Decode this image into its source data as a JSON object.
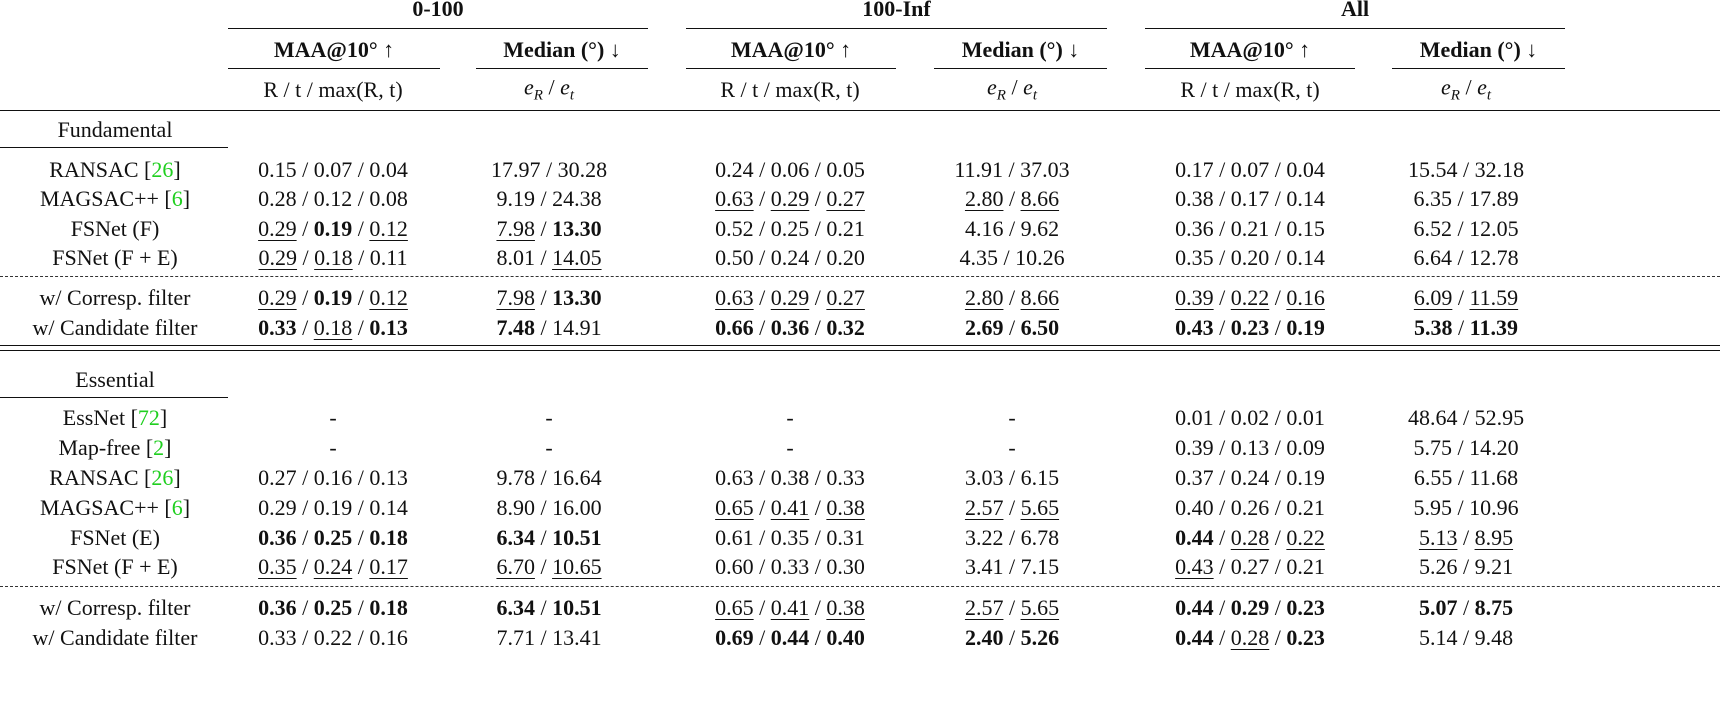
{
  "header": {
    "groups": [
      "0-100",
      "100-Inf",
      "All"
    ],
    "maa_label": "MAA@10° ↑",
    "median_label": "Median (°) ↓",
    "maa_sub": "R / t / max(R, t)",
    "median_sub": {
      "e": "e",
      "r": "R",
      "sep": " / ",
      "t": "t"
    }
  },
  "sections": [
    {
      "title": "Fundamental",
      "rows": [
        {
          "method": "RANSAC [",
          "ref": "26",
          "close": "]",
          "cells": [
            [
              [
                "0.15",
                ""
              ],
              [
                "0.07",
                ""
              ],
              [
                "0.04",
                ""
              ]
            ],
            [
              [
                "17.97",
                ""
              ],
              [
                "30.28",
                ""
              ]
            ],
            [
              [
                "0.24",
                ""
              ],
              [
                "0.06",
                ""
              ],
              [
                "0.05",
                ""
              ]
            ],
            [
              [
                "11.91",
                ""
              ],
              [
                "37.03",
                ""
              ]
            ],
            [
              [
                "0.17",
                ""
              ],
              [
                "0.07",
                ""
              ],
              [
                "0.04",
                ""
              ]
            ],
            [
              [
                "15.54",
                ""
              ],
              [
                "32.18",
                ""
              ]
            ]
          ]
        },
        {
          "method": "MAGSAC++ [",
          "ref": "6",
          "close": "]",
          "cells": [
            [
              [
                "0.28",
                ""
              ],
              [
                "0.12",
                ""
              ],
              [
                "0.08",
                ""
              ]
            ],
            [
              [
                "9.19",
                ""
              ],
              [
                "24.38",
                ""
              ]
            ],
            [
              [
                "0.63",
                "u"
              ],
              [
                "0.29",
                "u"
              ],
              [
                "0.27",
                "u"
              ]
            ],
            [
              [
                "2.80",
                "u"
              ],
              [
                "8.66",
                "u"
              ]
            ],
            [
              [
                "0.38",
                ""
              ],
              [
                "0.17",
                ""
              ],
              [
                "0.14",
                ""
              ]
            ],
            [
              [
                "6.35",
                ""
              ],
              [
                "17.89",
                ""
              ]
            ]
          ]
        },
        {
          "method": "FSNet (F)",
          "cells": [
            [
              [
                "0.29",
                "u"
              ],
              [
                "0.19",
                "b"
              ],
              [
                "0.12",
                "u"
              ]
            ],
            [
              [
                "7.98",
                "u"
              ],
              [
                "13.30",
                "b"
              ]
            ],
            [
              [
                "0.52",
                ""
              ],
              [
                "0.25",
                ""
              ],
              [
                "0.21",
                ""
              ]
            ],
            [
              [
                "4.16",
                ""
              ],
              [
                "9.62",
                ""
              ]
            ],
            [
              [
                "0.36",
                ""
              ],
              [
                "0.21",
                ""
              ],
              [
                "0.15",
                ""
              ]
            ],
            [
              [
                "6.52",
                ""
              ],
              [
                "12.05",
                ""
              ]
            ]
          ]
        },
        {
          "method": "FSNet (F + E)",
          "cells": [
            [
              [
                "0.29",
                "u"
              ],
              [
                "0.18",
                "u"
              ],
              [
                "0.11",
                ""
              ]
            ],
            [
              [
                "8.01",
                ""
              ],
              [
                "14.05",
                "u"
              ]
            ],
            [
              [
                "0.50",
                ""
              ],
              [
                "0.24",
                ""
              ],
              [
                "0.20",
                ""
              ]
            ],
            [
              [
                "4.35",
                ""
              ],
              [
                "10.26",
                ""
              ]
            ],
            [
              [
                "0.35",
                ""
              ],
              [
                "0.20",
                ""
              ],
              [
                "0.14",
                ""
              ]
            ],
            [
              [
                "6.64",
                ""
              ],
              [
                "12.78",
                ""
              ]
            ]
          ]
        },
        {
          "method": "w/ Corresp. filter",
          "cells": [
            [
              [
                "0.29",
                "u"
              ],
              [
                "0.19",
                "b"
              ],
              [
                "0.12",
                "u"
              ]
            ],
            [
              [
                "7.98",
                "u"
              ],
              [
                "13.30",
                "b"
              ]
            ],
            [
              [
                "0.63",
                "u"
              ],
              [
                "0.29",
                "u"
              ],
              [
                "0.27",
                "u"
              ]
            ],
            [
              [
                "2.80",
                "u"
              ],
              [
                "8.66",
                "u"
              ]
            ],
            [
              [
                "0.39",
                "u"
              ],
              [
                "0.22",
                "u"
              ],
              [
                "0.16",
                "u"
              ]
            ],
            [
              [
                "6.09",
                "u"
              ],
              [
                "11.59",
                "u"
              ]
            ]
          ]
        },
        {
          "method": "w/ Candidate filter",
          "cells": [
            [
              [
                "0.33",
                "b"
              ],
              [
                "0.18",
                "u"
              ],
              [
                "0.13",
                "b"
              ]
            ],
            [
              [
                "7.48",
                "b"
              ],
              [
                "14.91",
                ""
              ]
            ],
            [
              [
                "0.66",
                "b"
              ],
              [
                "0.36",
                "b"
              ],
              [
                "0.32",
                "b"
              ]
            ],
            [
              [
                "2.69",
                "b"
              ],
              [
                "6.50",
                "b"
              ]
            ],
            [
              [
                "0.43",
                "b"
              ],
              [
                "0.23",
                "b"
              ],
              [
                "0.19",
                "b"
              ]
            ],
            [
              [
                "5.38",
                "b"
              ],
              [
                "11.39",
                "b"
              ]
            ]
          ]
        }
      ]
    },
    {
      "title": "Essential",
      "rows": [
        {
          "method": "EssNet [",
          "ref": "72",
          "close": "]",
          "cells": [
            [
              [
                "-",
                ""
              ]
            ],
            [
              [
                "-",
                ""
              ]
            ],
            [
              [
                "-",
                ""
              ]
            ],
            [
              [
                "-",
                ""
              ]
            ],
            [
              [
                "0.01",
                ""
              ],
              [
                "0.02",
                ""
              ],
              [
                "0.01",
                ""
              ]
            ],
            [
              [
                "48.64",
                ""
              ],
              [
                "52.95",
                ""
              ]
            ]
          ]
        },
        {
          "method": "Map-free [",
          "ref": "2",
          "close": "]",
          "cells": [
            [
              [
                "-",
                ""
              ]
            ],
            [
              [
                "-",
                ""
              ]
            ],
            [
              [
                "-",
                ""
              ]
            ],
            [
              [
                "-",
                ""
              ]
            ],
            [
              [
                "0.39",
                ""
              ],
              [
                "0.13",
                ""
              ],
              [
                "0.09",
                ""
              ]
            ],
            [
              [
                "5.75",
                ""
              ],
              [
                "14.20",
                ""
              ]
            ]
          ]
        },
        {
          "method": "RANSAC [",
          "ref": "26",
          "close": "]",
          "cells": [
            [
              [
                "0.27",
                ""
              ],
              [
                "0.16",
                ""
              ],
              [
                "0.13",
                ""
              ]
            ],
            [
              [
                "9.78",
                ""
              ],
              [
                "16.64",
                ""
              ]
            ],
            [
              [
                "0.63",
                ""
              ],
              [
                "0.38",
                ""
              ],
              [
                "0.33",
                ""
              ]
            ],
            [
              [
                "3.03",
                ""
              ],
              [
                "6.15",
                ""
              ]
            ],
            [
              [
                "0.37",
                ""
              ],
              [
                "0.24",
                ""
              ],
              [
                "0.19",
                ""
              ]
            ],
            [
              [
                "6.55",
                ""
              ],
              [
                "11.68",
                ""
              ]
            ]
          ]
        },
        {
          "method": "MAGSAC++ [",
          "ref": "6",
          "close": "]",
          "cells": [
            [
              [
                "0.29",
                ""
              ],
              [
                "0.19",
                ""
              ],
              [
                "0.14",
                ""
              ]
            ],
            [
              [
                "8.90",
                ""
              ],
              [
                "16.00",
                ""
              ]
            ],
            [
              [
                "0.65",
                "u"
              ],
              [
                "0.41",
                "u"
              ],
              [
                "0.38",
                "u"
              ]
            ],
            [
              [
                "2.57",
                "u"
              ],
              [
                "5.65",
                "u"
              ]
            ],
            [
              [
                "0.40",
                ""
              ],
              [
                "0.26",
                ""
              ],
              [
                "0.21",
                ""
              ]
            ],
            [
              [
                "5.95",
                ""
              ],
              [
                "10.96",
                ""
              ]
            ]
          ]
        },
        {
          "method": "FSNet (E)",
          "cells": [
            [
              [
                "0.36",
                "b"
              ],
              [
                "0.25",
                "b"
              ],
              [
                "0.18",
                "b"
              ]
            ],
            [
              [
                "6.34",
                "b"
              ],
              [
                "10.51",
                "b"
              ]
            ],
            [
              [
                "0.61",
                ""
              ],
              [
                "0.35",
                ""
              ],
              [
                "0.31",
                ""
              ]
            ],
            [
              [
                "3.22",
                ""
              ],
              [
                "6.78",
                ""
              ]
            ],
            [
              [
                "0.44",
                "b"
              ],
              [
                "0.28",
                "u"
              ],
              [
                "0.22",
                "u"
              ]
            ],
            [
              [
                "5.13",
                "u"
              ],
              [
                "8.95",
                "u"
              ]
            ]
          ]
        },
        {
          "method": "FSNet (F + E)",
          "cells": [
            [
              [
                "0.35",
                "u"
              ],
              [
                "0.24",
                "u"
              ],
              [
                "0.17",
                "u"
              ]
            ],
            [
              [
                "6.70",
                "u"
              ],
              [
                "10.65",
                "u"
              ]
            ],
            [
              [
                "0.60",
                ""
              ],
              [
                "0.33",
                ""
              ],
              [
                "0.30",
                ""
              ]
            ],
            [
              [
                "3.41",
                ""
              ],
              [
                "7.15",
                ""
              ]
            ],
            [
              [
                "0.43",
                "u"
              ],
              [
                "0.27",
                ""
              ],
              [
                "0.21",
                ""
              ]
            ],
            [
              [
                "5.26",
                ""
              ],
              [
                "9.21",
                ""
              ]
            ]
          ]
        },
        {
          "method": "w/ Corresp. filter",
          "cells": [
            [
              [
                "0.36",
                "b"
              ],
              [
                "0.25",
                "b"
              ],
              [
                "0.18",
                "b"
              ]
            ],
            [
              [
                "6.34",
                "b"
              ],
              [
                "10.51",
                "b"
              ]
            ],
            [
              [
                "0.65",
                "u"
              ],
              [
                "0.41",
                "u"
              ],
              [
                "0.38",
                "u"
              ]
            ],
            [
              [
                "2.57",
                "u"
              ],
              [
                "5.65",
                "u"
              ]
            ],
            [
              [
                "0.44",
                "b"
              ],
              [
                "0.29",
                "b"
              ],
              [
                "0.23",
                "b"
              ]
            ],
            [
              [
                "5.07",
                "b"
              ],
              [
                "8.75",
                "b"
              ]
            ]
          ]
        },
        {
          "method": "w/ Candidate filter",
          "cells": [
            [
              [
                "0.33",
                ""
              ],
              [
                "0.22",
                ""
              ],
              [
                "0.16",
                ""
              ]
            ],
            [
              [
                "7.71",
                ""
              ],
              [
                "13.41",
                ""
              ]
            ],
            [
              [
                "0.69",
                "b"
              ],
              [
                "0.44",
                "b"
              ],
              [
                "0.40",
                "b"
              ]
            ],
            [
              [
                "2.40",
                "b"
              ],
              [
                "5.26",
                "b"
              ]
            ],
            [
              [
                "0.44",
                "b"
              ],
              [
                "0.28",
                "u"
              ],
              [
                "0.23",
                "b"
              ]
            ],
            [
              [
                "5.14",
                ""
              ],
              [
                "9.48",
                ""
              ]
            ]
          ]
        }
      ]
    }
  ]
}
